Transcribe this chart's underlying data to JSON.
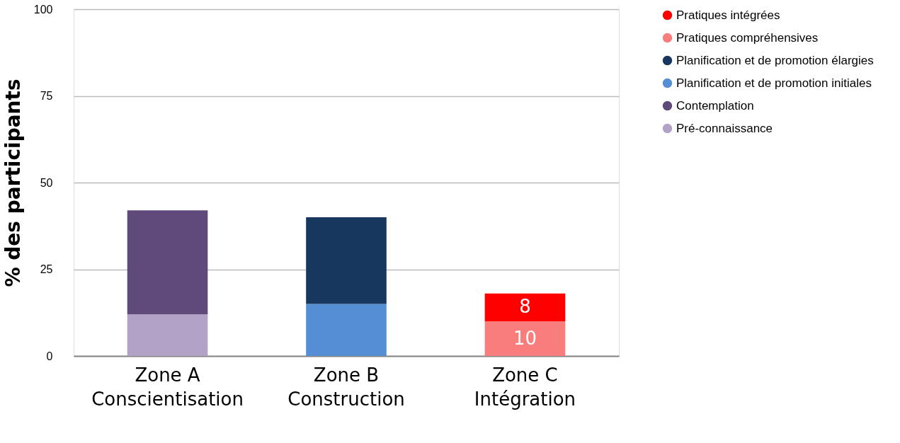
{
  "chart_data": {
    "type": "bar",
    "stacked": true,
    "ylabel": "% des participants",
    "categories": [
      "Zone A\nConscientisation",
      "Zone B\nConstruction",
      "Zone C\nIntégration"
    ],
    "ylim": [
      0,
      100
    ],
    "yticks": [
      0,
      25,
      50,
      75,
      100
    ],
    "grid": "y",
    "legend": "right",
    "series": [
      {
        "name": "Pré-connaissance",
        "color": "#b3a2c7",
        "values": [
          12,
          null,
          null
        ]
      },
      {
        "name": "Contemplation",
        "color": "#604a7b",
        "values": [
          30,
          null,
          null
        ]
      },
      {
        "name": "Planification et de promotion initiales",
        "color": "#558ed5",
        "values": [
          null,
          15,
          null
        ]
      },
      {
        "name": "Planification et de promotion élargies",
        "color": "#17375e",
        "values": [
          null,
          25,
          null
        ]
      },
      {
        "name": "Pratiques compréhensives",
        "color": "#fa7d7d",
        "values": [
          null,
          null,
          10
        ],
        "value_labels": [
          null,
          null,
          "10"
        ]
      },
      {
        "name": "Pratiques intégrées",
        "color": "#ff0000",
        "values": [
          null,
          null,
          8
        ],
        "value_labels": [
          null,
          null,
          "8"
        ]
      }
    ]
  }
}
